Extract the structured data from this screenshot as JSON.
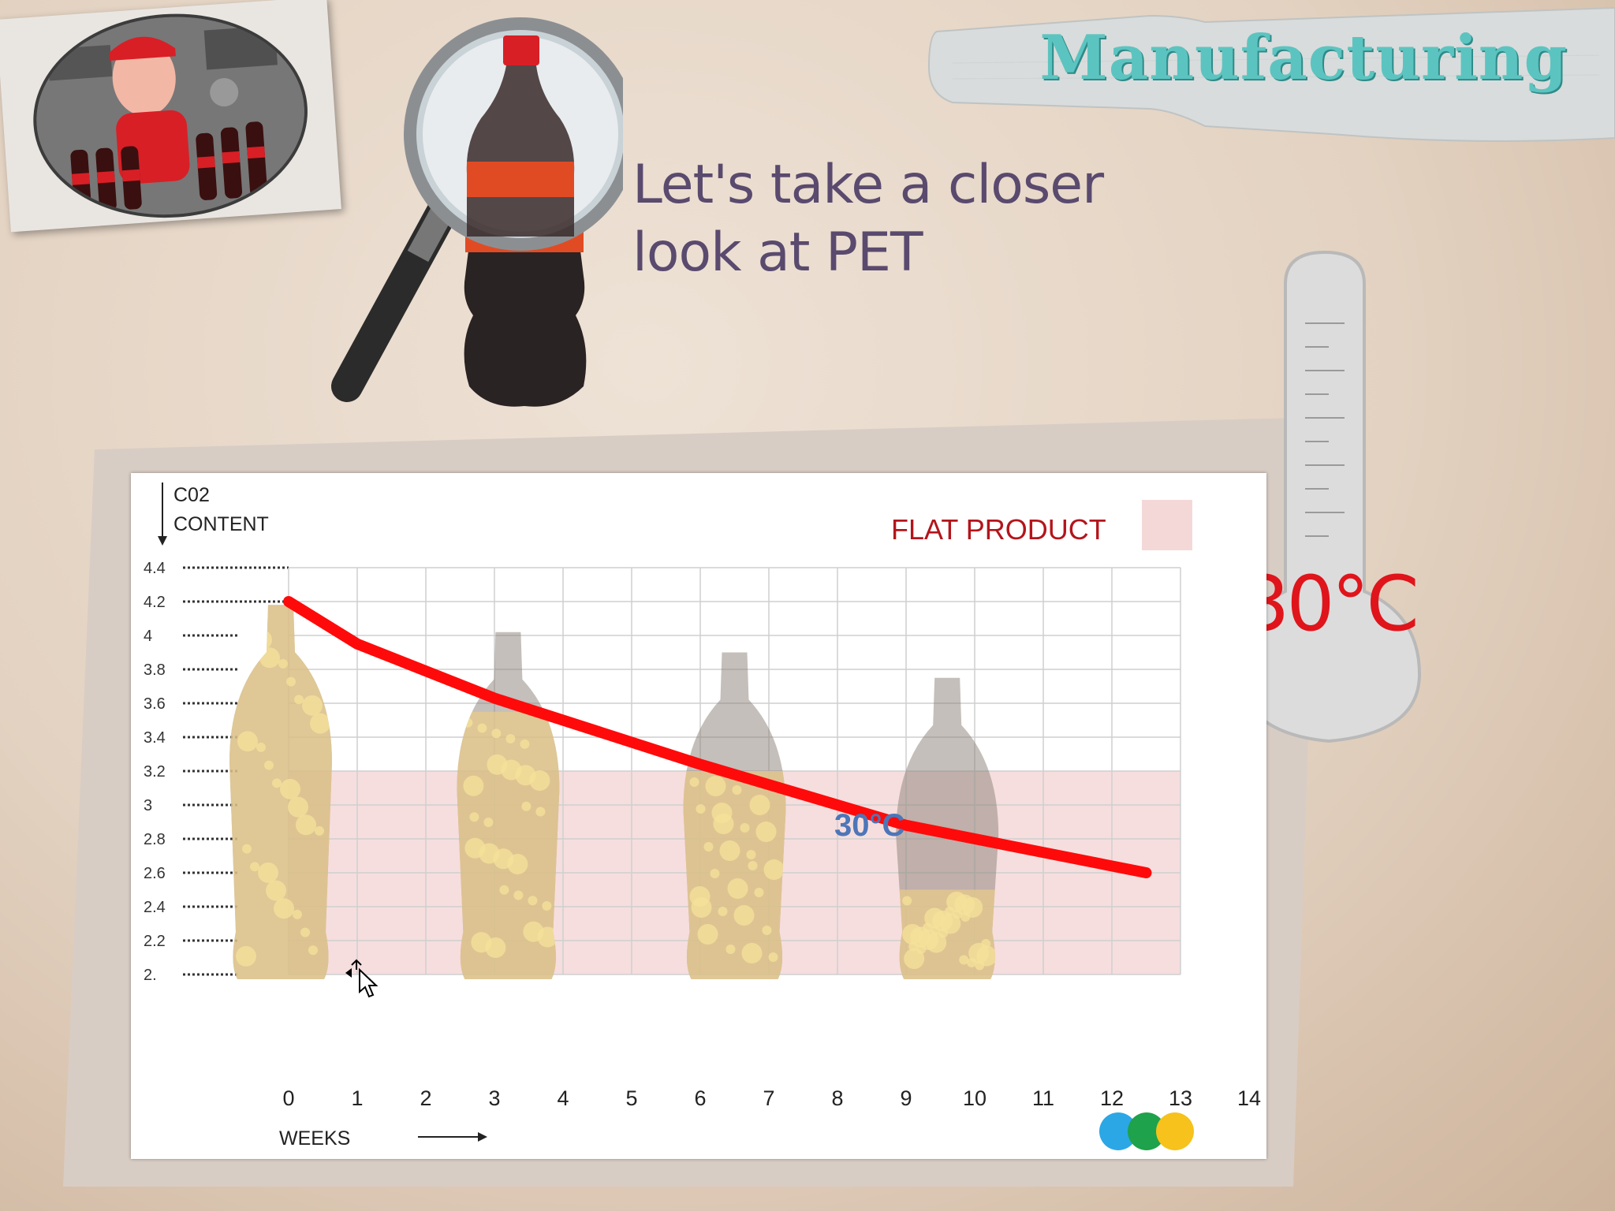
{
  "header": {
    "banner_title": "Manufacturing",
    "heading_line1": "Let's take a closer",
    "heading_line2": "look at PET"
  },
  "thermometer": {
    "label": "30°C"
  },
  "colors": {
    "line": "#ff0a0a",
    "flat_zone": "#f4d8d8",
    "banner_text": "#5cc4c0",
    "heading_text": "#5a4a6e",
    "dots": [
      "#2ba7e6",
      "#1ea24b",
      "#f6c21b"
    ]
  },
  "icons": {
    "photo": "worker-with-bottles-icon",
    "magnifier": "magnifying-glass-bottle-icon",
    "thermometer": "thermometer-icon",
    "cursor": "move-cursor-icon"
  },
  "chart_data": {
    "type": "line",
    "ylabel_line1": "C02",
    "ylabel_line2": "CONTENT",
    "xlabel": "WEEKS",
    "legend": "FLAT PRODUCT",
    "annotation": "30°C",
    "y_ticks": [
      "4.4",
      "4.2",
      "4",
      "3.8",
      "3.6",
      "3.4",
      "3.2",
      "3",
      "2.8",
      "2.6",
      "2.4",
      "2.2",
      "2."
    ],
    "x_ticks": [
      "0",
      "1",
      "2",
      "3",
      "4",
      "5",
      "6",
      "7",
      "8",
      "9",
      "10",
      "11",
      "12",
      "13",
      "14"
    ],
    "xlim": [
      0,
      14
    ],
    "ylim": [
      2.0,
      4.4
    ],
    "flat_threshold": 3.2,
    "series": [
      {
        "x": [
          0,
          1,
          3,
          6,
          9,
          12.5
        ],
        "y": [
          4.2,
          3.95,
          3.63,
          3.24,
          2.88,
          2.6
        ]
      }
    ],
    "grid": true
  }
}
